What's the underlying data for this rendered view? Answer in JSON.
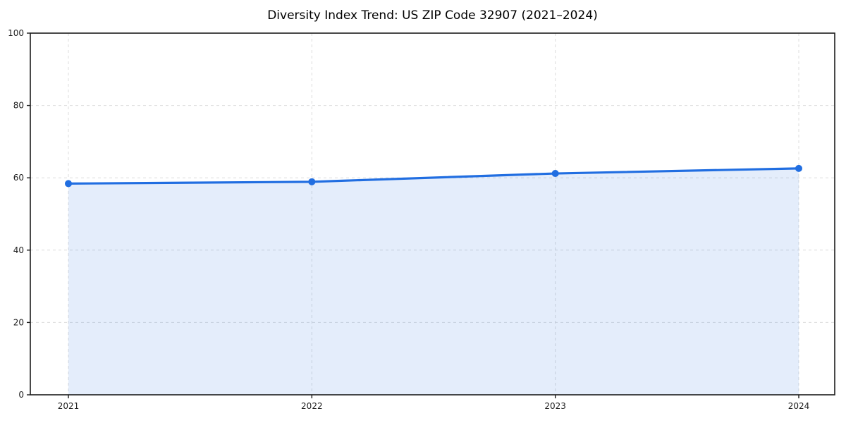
{
  "chart_data": {
    "type": "line",
    "title": "Diversity Index Trend: US ZIP Code 32907 (2021–2024)",
    "x": [
      "2021",
      "2022",
      "2023",
      "2024"
    ],
    "series": [
      {
        "name": "Diversity Index",
        "values": [
          58.4,
          58.9,
          61.2,
          62.6
        ]
      }
    ],
    "xlabel": "",
    "ylabel": "",
    "ylim": [
      0,
      100
    ],
    "yticks": [
      0,
      20,
      40,
      60,
      80,
      100
    ],
    "grid": true,
    "grid_style": "dashed",
    "legend": "none",
    "area_fill": true,
    "marker": "circle",
    "colors": {
      "line": "#216ee1",
      "marker": "#216ee1",
      "area": "#216ee1",
      "area_opacity": 0.12,
      "grid": "#dcdcdc",
      "spine": "#1c1c1c",
      "tick_label": "#1c1c1c",
      "title": "#000000",
      "background": "#ffffff"
    }
  }
}
